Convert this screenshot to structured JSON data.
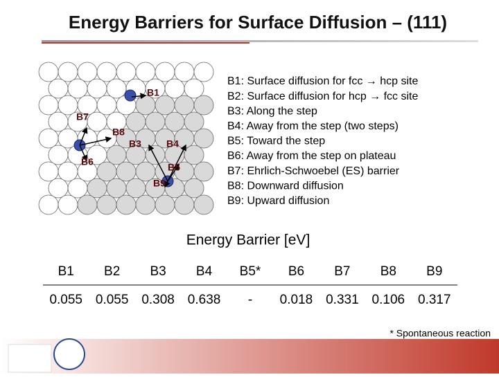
{
  "title": "Energy Barriers for Surface Diffusion – (111)",
  "diagram_labels": [
    "B1",
    "B7",
    "B8",
    "B3",
    "B4",
    "B6",
    "B5",
    "B9"
  ],
  "legend": [
    "B1: Surface diffusion for fcc → hcp site",
    "B2: Surface diffusion for hcp → fcc site",
    "B3: Along the step",
    "B4: Away from the step (two steps)",
    "B5: Toward the step",
    "B6: Away from the step on plateau",
    "B7: Ehrlich-Schwoebel (ES) barrier",
    "B8: Downward diffusion",
    "B9: Upward diffusion"
  ],
  "table": {
    "caption": "Energy Barrier [eV]",
    "header": [
      "B1",
      "B2",
      "B3",
      "B4",
      "B5*",
      "B6",
      "B7",
      "B8",
      "B9"
    ],
    "rows": [
      [
        "0.055",
        "0.055",
        "0.308",
        "0.638",
        "-",
        "0.018",
        "0.331",
        "0.106",
        "0.317"
      ]
    ]
  },
  "footnote": "* Spontaneous reaction"
}
